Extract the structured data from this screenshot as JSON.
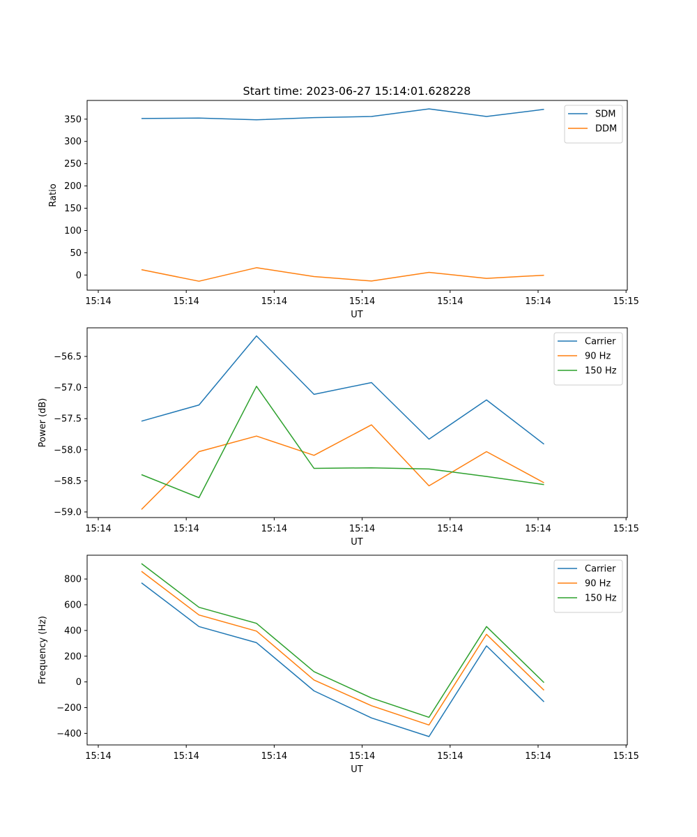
{
  "figure_title": "Start time: 2023-06-27 15:14:01.628228",
  "chart_data": [
    {
      "type": "line",
      "title": "Start time: 2023-06-27 15:14:01.628228",
      "xlabel": "UT",
      "ylabel": "Ratio",
      "x_tick_labels": [
        "15:14",
        "15:14",
        "15:14",
        "15:14",
        "15:14",
        "15:14",
        "15:15"
      ],
      "y_ticks": [
        0,
        50,
        100,
        150,
        200,
        250,
        300,
        350
      ],
      "y_tick_labels": [
        "0",
        "50",
        "100",
        "150",
        "200",
        "250",
        "300",
        "350"
      ],
      "ylim": [
        -34,
        392
      ],
      "grid": false,
      "legend": "top-right",
      "series": [
        {
          "name": "SDM",
          "color": "#1f77b4",
          "values": [
            351.5,
            352.5,
            348.5,
            353.5,
            356,
            373,
            356,
            372
          ]
        },
        {
          "name": "DDM",
          "color": "#ff7f0e",
          "values": [
            12,
            -14,
            16.5,
            -3.5,
            -13.5,
            6,
            -7.5,
            -0.5
          ]
        }
      ]
    },
    {
      "type": "line",
      "title": "",
      "xlabel": "UT",
      "ylabel": "Power (dB)",
      "x_tick_labels": [
        "15:14",
        "15:14",
        "15:14",
        "15:14",
        "15:14",
        "15:14",
        "15:15"
      ],
      "y_ticks": [
        -59.0,
        -58.5,
        -58.0,
        -57.5,
        -57.0,
        -56.5
      ],
      "y_tick_labels": [
        "−59.0",
        "−58.5",
        "−58.0",
        "−57.5",
        "−57.0",
        "−56.5"
      ],
      "ylim": [
        -59.09,
        -56.04
      ],
      "grid": false,
      "legend": "top-right",
      "series": [
        {
          "name": "Carrier",
          "color": "#1f77b4",
          "values": [
            -57.54,
            -57.28,
            -56.17,
            -57.11,
            -56.92,
            -57.83,
            -57.2,
            -57.91
          ]
        },
        {
          "name": "90 Hz",
          "color": "#ff7f0e",
          "values": [
            -58.96,
            -58.03,
            -57.78,
            -58.09,
            -57.6,
            -58.58,
            -58.03,
            -58.53
          ]
        },
        {
          "name": "150 Hz",
          "color": "#2ca02c",
          "values": [
            -58.4,
            -58.77,
            -56.98,
            -58.3,
            -58.29,
            -58.31,
            -58.43,
            -58.56
          ]
        }
      ]
    },
    {
      "type": "line",
      "title": "",
      "xlabel": "UT",
      "ylabel": "Frequency (Hz)",
      "x_tick_labels": [
        "15:14",
        "15:14",
        "15:14",
        "15:14",
        "15:14",
        "15:14",
        "15:15"
      ],
      "y_ticks": [
        -400,
        -200,
        0,
        200,
        400,
        600,
        800
      ],
      "y_tick_labels": [
        "−400",
        "−200",
        "0",
        "200",
        "400",
        "600",
        "800"
      ],
      "ylim": [
        -490,
        985
      ],
      "grid": false,
      "legend": "top-right",
      "series": [
        {
          "name": "Carrier",
          "color": "#1f77b4",
          "values": [
            770,
            430,
            305,
            -70,
            -280,
            -425,
            280,
            -155
          ]
        },
        {
          "name": "90 Hz",
          "color": "#ff7f0e",
          "values": [
            860,
            520,
            395,
            15,
            -185,
            -335,
            370,
            -65
          ]
        },
        {
          "name": "150 Hz",
          "color": "#2ca02c",
          "values": [
            920,
            580,
            455,
            80,
            -125,
            -275,
            430,
            -5
          ]
        }
      ]
    }
  ]
}
